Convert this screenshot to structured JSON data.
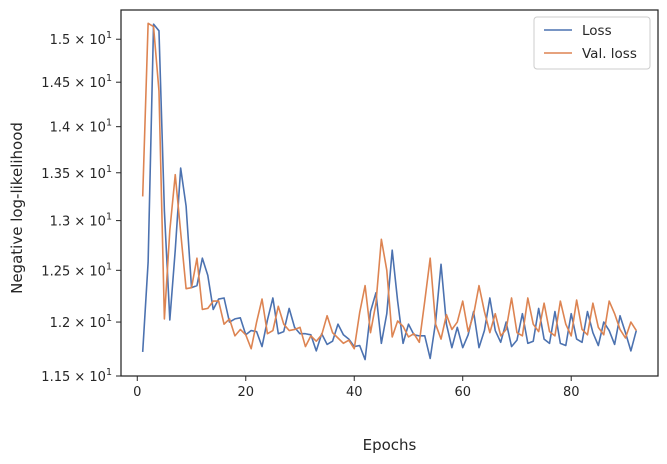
{
  "chart_data": {
    "type": "line",
    "xlabel": "Epochs",
    "ylabel": "Negative log-likelihood",
    "xlim": [
      -3,
      96
    ],
    "ylim": [
      11.5,
      15.35
    ],
    "y_scale": "log",
    "x_ticks": [
      0,
      20,
      40,
      60,
      80
    ],
    "y_ticks": [
      {
        "value": 11.5,
        "label": "1.15 × 10^1"
      },
      {
        "value": 12.0,
        "label": "1.2 × 10^1"
      },
      {
        "value": 12.5,
        "label": "1.25 × 10^1"
      },
      {
        "value": 13.0,
        "label": "1.3 × 10^1"
      },
      {
        "value": 13.5,
        "label": "1.35 × 10^1"
      },
      {
        "value": 14.0,
        "label": "1.4 × 10^1"
      },
      {
        "value": 14.5,
        "label": "1.45 × 10^1"
      },
      {
        "value": 15.0,
        "label": "1.5 × 10^1"
      }
    ],
    "grid": false,
    "legend_position": "top-right",
    "x": [
      1,
      2,
      3,
      4,
      5,
      6,
      7,
      8,
      9,
      10,
      11,
      12,
      13,
      14,
      15,
      16,
      17,
      18,
      19,
      20,
      21,
      22,
      23,
      24,
      25,
      26,
      27,
      28,
      29,
      30,
      31,
      32,
      33,
      34,
      35,
      36,
      37,
      38,
      39,
      40,
      41,
      42,
      43,
      44,
      45,
      46,
      47,
      48,
      49,
      50,
      51,
      52,
      53,
      54,
      55,
      56,
      57,
      58,
      59,
      60,
      61,
      62,
      63,
      64,
      65,
      66,
      67,
      68,
      69,
      70,
      71,
      72,
      73,
      74,
      75,
      76,
      77,
      78,
      79,
      80,
      81,
      82,
      83,
      84,
      85,
      86,
      87,
      88,
      89,
      90,
      91,
      92
    ],
    "series": [
      {
        "name": "Loss",
        "color": "#4c72b0",
        "values": [
          11.72,
          12.58,
          15.18,
          15.1,
          13.1,
          12.02,
          12.7,
          13.55,
          13.15,
          12.33,
          12.35,
          12.62,
          12.45,
          12.12,
          12.22,
          12.23,
          12.0,
          12.03,
          12.04,
          11.88,
          11.92,
          11.91,
          11.77,
          12.02,
          12.23,
          11.89,
          11.91,
          12.13,
          11.95,
          11.89,
          11.89,
          11.88,
          11.73,
          11.89,
          11.79,
          11.82,
          11.98,
          11.88,
          11.84,
          11.77,
          11.78,
          11.65,
          12.1,
          12.28,
          11.8,
          12.08,
          12.7,
          12.2,
          11.8,
          11.98,
          11.88,
          11.87,
          11.87,
          11.66,
          12.0,
          12.56,
          11.98,
          11.76,
          11.95,
          11.76,
          11.88,
          12.1,
          11.76,
          11.92,
          12.23,
          11.92,
          11.81,
          12.0,
          11.77,
          11.83,
          12.08,
          11.8,
          11.82,
          12.13,
          11.84,
          11.8,
          12.1,
          11.8,
          11.78,
          12.08,
          11.84,
          11.81,
          12.1,
          11.9,
          11.78,
          12.0,
          11.92,
          11.79,
          12.06,
          11.9,
          11.73,
          11.92
        ]
      },
      {
        "name": "Val. loss",
        "color": "#dd8452",
        "values": [
          13.25,
          15.19,
          15.15,
          14.4,
          12.03,
          12.9,
          13.48,
          12.88,
          12.32,
          12.33,
          12.62,
          12.12,
          12.13,
          12.2,
          12.2,
          11.98,
          12.03,
          11.87,
          11.93,
          11.88,
          11.75,
          12.0,
          12.22,
          11.89,
          11.92,
          12.15,
          11.98,
          11.92,
          11.93,
          11.95,
          11.77,
          11.87,
          11.82,
          11.88,
          12.06,
          11.9,
          11.85,
          11.8,
          11.83,
          11.75,
          12.09,
          12.35,
          11.9,
          12.18,
          12.81,
          12.5,
          11.86,
          12.01,
          11.96,
          11.86,
          11.89,
          11.81,
          12.2,
          12.62,
          11.98,
          11.84,
          12.07,
          11.93,
          12.0,
          12.2,
          11.91,
          12.07,
          12.35,
          12.1,
          11.9,
          12.08,
          11.87,
          11.93,
          12.23,
          11.9,
          11.87,
          12.23,
          11.98,
          11.91,
          12.18,
          11.91,
          11.87,
          12.2,
          11.98,
          11.87,
          12.21,
          11.93,
          11.88,
          12.18,
          11.95,
          11.88,
          12.2,
          12.08,
          11.93,
          11.85,
          12.0,
          11.92
        ]
      }
    ]
  }
}
